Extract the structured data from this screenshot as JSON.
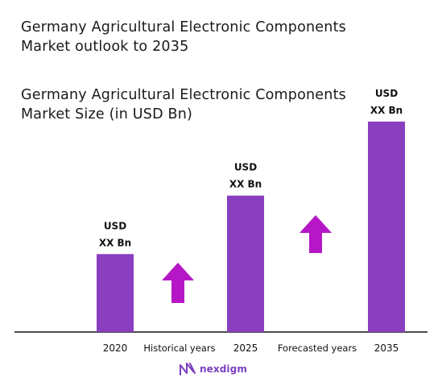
{
  "header": {
    "title": "Germany Agricultural Electronic Components Market outlook to 2035",
    "subtitle": "Germany Agricultural Electronic Components Market Size (in USD Bn)"
  },
  "chart_data": {
    "type": "bar",
    "categories": [
      "2020",
      "2025",
      "2035"
    ],
    "series": [
      {
        "values": [
          1,
          1.75,
          2.7
        ],
        "data_labels": [
          "USD XX Bn",
          "USD XX Bn",
          "USD XX Bn"
        ],
        "color": "#8a3fc1"
      }
    ],
    "value_label_line1": "USD",
    "value_label_line2": "XX Bn",
    "ylim": [
      0,
      2.75
    ],
    "grid": false,
    "period_labels": [
      "Historical years",
      "Forecasted years"
    ],
    "trend_arrow_color": "#b517c6",
    "trend_direction": "up"
  },
  "brand": {
    "name": "nexdigm",
    "icon": "nexdigm-logo-icon",
    "color": "#7b3fbe"
  }
}
